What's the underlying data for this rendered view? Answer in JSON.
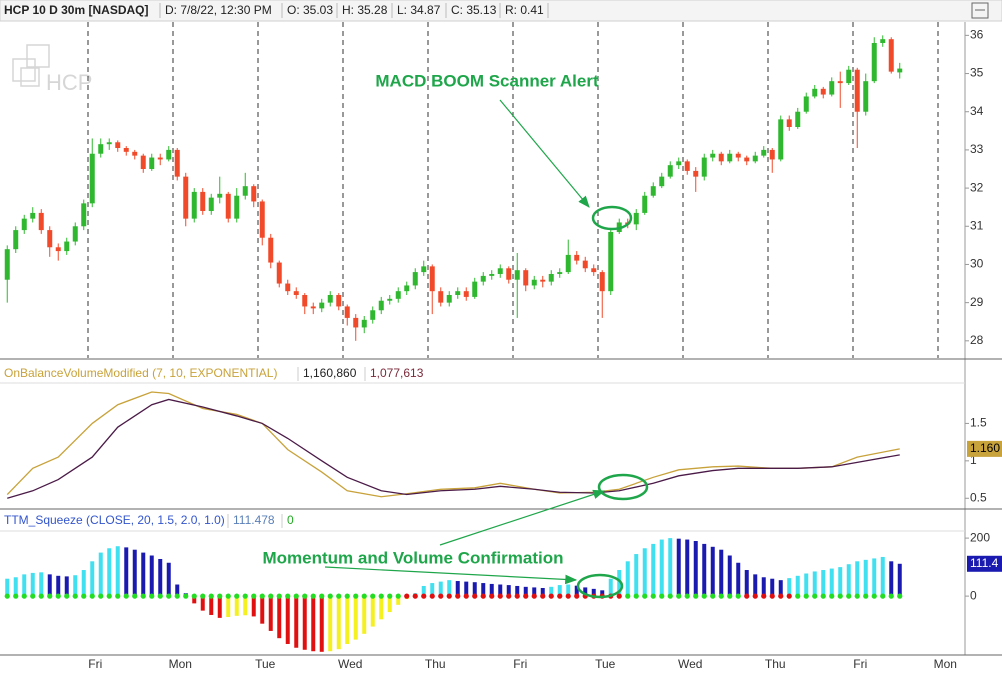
{
  "header": {
    "symbol": "HCP 10 D 30m [NASDAQ]",
    "date": "D: 7/8/22, 12:30 PM",
    "open": "O: 35.03",
    "high": "H: 35.28",
    "low": "L: 34.87",
    "close": "C: 35.13",
    "range": "R: 0.41"
  },
  "watermark": "HCP",
  "annotation": "Momentum and Volume Confirmation",
  "chart_data": [
    {
      "type": "candlestick",
      "annotation": "MACD BOOM Scanner Alert",
      "up_color": "#2fb82f",
      "down_color": "#f04a2a",
      "ylim": [
        27.55,
        36.35
      ],
      "yticks": [
        28,
        29,
        30,
        31,
        32,
        33,
        34,
        35,
        36
      ],
      "xticks": [
        {
          "value": 10,
          "label": "Fri"
        },
        {
          "value": 20,
          "label": "Mon"
        },
        {
          "value": 30,
          "label": "Tue"
        },
        {
          "value": 40,
          "label": "Wed"
        },
        {
          "value": 50,
          "label": "Thu"
        },
        {
          "value": 60,
          "label": "Fri"
        },
        {
          "value": 70,
          "label": "Tue"
        },
        {
          "value": 80,
          "label": "Wed"
        },
        {
          "value": 90,
          "label": "Thu"
        },
        {
          "value": 100,
          "label": "Fri"
        },
        {
          "value": 110,
          "label": "Mon"
        }
      ],
      "open": [
        29.6,
        30.4,
        30.9,
        31.2,
        31.35,
        30.9,
        30.45,
        30.35,
        30.6,
        31.0,
        31.6,
        32.9,
        33.15,
        33.2,
        33.05,
        32.95,
        32.85,
        32.5,
        32.8,
        32.75,
        33.0,
        32.3,
        31.2,
        31.9,
        31.4,
        31.75,
        31.85,
        31.2,
        31.8,
        32.05,
        31.65,
        30.7,
        30.05,
        29.5,
        29.3,
        29.2,
        28.9,
        28.85,
        29.0,
        29.2,
        28.9,
        28.6,
        28.35,
        28.55,
        28.8,
        29.05,
        29.1,
        29.3,
        29.45,
        29.8,
        29.95,
        29.3,
        29.0,
        29.2,
        29.3,
        29.15,
        29.55,
        29.7,
        29.75,
        29.9,
        29.6,
        29.85,
        29.45,
        29.6,
        29.55,
        29.75,
        29.8,
        30.25,
        30.1,
        29.9,
        29.8,
        29.3,
        30.85,
        31.1,
        31.05,
        31.35,
        31.8,
        32.05,
        32.3,
        32.6,
        32.7,
        32.45,
        32.3,
        32.8,
        32.9,
        32.7,
        32.9,
        32.8,
        32.7,
        32.85,
        33.0,
        32.75,
        33.8,
        33.6,
        34.0,
        34.4,
        34.6,
        34.45,
        34.8,
        34.75,
        35.1,
        34.0,
        34.8,
        35.8,
        35.9,
        35.03
      ],
      "high": [
        30.5,
        31.0,
        31.3,
        31.5,
        31.45,
        31.0,
        30.55,
        30.7,
        31.1,
        31.7,
        33.3,
        33.3,
        33.3,
        33.25,
        33.1,
        33.0,
        32.9,
        32.9,
        32.9,
        33.1,
        33.05,
        32.4,
        32.0,
        32.0,
        31.85,
        32.3,
        31.9,
        32.0,
        32.4,
        32.1,
        31.7,
        30.8,
        30.1,
        29.6,
        29.4,
        29.25,
        29.0,
        29.1,
        29.3,
        29.25,
        28.95,
        28.7,
        28.65,
        28.9,
        29.15,
        29.2,
        29.4,
        29.55,
        29.9,
        30.1,
        30.0,
        29.4,
        29.3,
        29.4,
        29.4,
        29.65,
        29.8,
        29.85,
        30.0,
        29.95,
        30.3,
        29.9,
        29.7,
        29.7,
        29.85,
        29.9,
        30.65,
        30.35,
        30.2,
        30.0,
        29.85,
        30.95,
        31.2,
        31.2,
        31.45,
        31.9,
        32.15,
        32.4,
        32.7,
        32.8,
        32.75,
        32.55,
        32.9,
        33.0,
        32.95,
        33.0,
        32.95,
        32.85,
        32.95,
        33.1,
        33.05,
        33.9,
        33.9,
        34.1,
        34.5,
        34.7,
        34.65,
        34.9,
        35.05,
        35.2,
        35.15,
        35.0,
        35.95,
        36.0,
        35.95,
        35.28
      ],
      "low": [
        29.0,
        30.3,
        30.8,
        31.1,
        30.8,
        30.2,
        30.1,
        30.25,
        30.5,
        30.9,
        31.5,
        32.8,
        33.0,
        32.95,
        32.85,
        32.75,
        32.4,
        32.45,
        32.6,
        32.7,
        32.2,
        31.0,
        31.1,
        31.3,
        31.3,
        31.6,
        31.1,
        31.1,
        31.7,
        31.5,
        30.5,
        29.9,
        29.4,
        29.2,
        29.1,
        28.7,
        28.7,
        28.75,
        28.9,
        28.8,
        28.4,
        28.0,
        28.2,
        28.45,
        28.7,
        28.95,
        29.0,
        29.2,
        29.35,
        29.7,
        28.7,
        28.9,
        28.9,
        29.1,
        29.05,
        29.1,
        29.45,
        29.6,
        29.65,
        29.5,
        28.6,
        29.3,
        29.35,
        29.4,
        29.45,
        29.65,
        29.75,
        30.0,
        29.8,
        29.7,
        28.6,
        29.2,
        30.8,
        30.95,
        30.9,
        31.3,
        31.75,
        32.0,
        32.25,
        32.5,
        32.35,
        31.9,
        32.2,
        32.7,
        32.6,
        32.65,
        32.7,
        32.6,
        32.65,
        32.8,
        32.4,
        32.7,
        33.5,
        33.55,
        33.95,
        34.35,
        34.35,
        34.4,
        34.1,
        34.7,
        33.05,
        33.9,
        34.75,
        35.7,
        35.0,
        34.87
      ],
      "close": [
        30.4,
        30.9,
        31.2,
        31.35,
        30.9,
        30.45,
        30.35,
        30.6,
        31.0,
        31.6,
        32.9,
        33.15,
        33.2,
        33.05,
        32.95,
        32.85,
        32.5,
        32.8,
        32.75,
        33.0,
        32.3,
        31.2,
        31.9,
        31.4,
        31.75,
        31.85,
        31.2,
        31.8,
        32.05,
        31.65,
        30.7,
        30.05,
        29.5,
        29.3,
        29.2,
        28.9,
        28.85,
        29.0,
        29.2,
        28.9,
        28.6,
        28.35,
        28.55,
        28.8,
        29.05,
        29.1,
        29.3,
        29.45,
        29.8,
        29.95,
        29.3,
        29.0,
        29.2,
        29.3,
        29.15,
        29.55,
        29.7,
        29.75,
        29.9,
        29.6,
        29.85,
        29.45,
        29.6,
        29.55,
        29.75,
        29.8,
        30.25,
        30.1,
        29.9,
        29.8,
        29.3,
        30.85,
        31.1,
        31.05,
        31.35,
        31.8,
        32.05,
        32.3,
        32.6,
        32.7,
        32.45,
        32.3,
        32.8,
        32.9,
        32.7,
        32.9,
        32.8,
        32.7,
        32.85,
        33.0,
        32.75,
        33.8,
        33.6,
        34.0,
        34.4,
        34.6,
        34.45,
        34.8,
        34.75,
        35.1,
        34.0,
        34.8,
        35.8,
        35.9,
        35.05,
        35.13
      ]
    },
    {
      "type": "line",
      "title": "OnBalanceVolumeModified (7, 10, EXPONENTIAL)",
      "readouts": [
        "1,160,860",
        "1,077,613"
      ],
      "badge": "1.160",
      "ylim": [
        0.37,
        2.0
      ],
      "yticks": [
        0.5,
        1,
        1.5
      ],
      "x": [
        0,
        3,
        6,
        10,
        13,
        17,
        19,
        23,
        27,
        30,
        33,
        37,
        40,
        44,
        47,
        51,
        55,
        58,
        62,
        65,
        69,
        72,
        76,
        79,
        83,
        86,
        90,
        93,
        97,
        100,
        105
      ],
      "series": [
        {
          "color": "#c8a23a",
          "values": [
            0.55,
            0.9,
            1.05,
            1.5,
            1.75,
            1.92,
            1.9,
            1.7,
            1.62,
            1.5,
            1.15,
            0.85,
            0.6,
            0.52,
            0.56,
            0.62,
            0.64,
            0.7,
            0.62,
            0.57,
            0.58,
            0.62,
            0.78,
            0.88,
            0.92,
            0.93,
            0.9,
            0.9,
            0.92,
            1.05,
            1.16
          ]
        },
        {
          "color": "#4b1b48",
          "values": [
            0.5,
            0.6,
            0.75,
            1.05,
            1.45,
            1.75,
            1.82,
            1.72,
            1.6,
            1.5,
            1.3,
            1.0,
            0.78,
            0.6,
            0.55,
            0.6,
            0.62,
            0.66,
            0.62,
            0.58,
            0.57,
            0.6,
            0.7,
            0.8,
            0.87,
            0.9,
            0.9,
            0.9,
            0.92,
            0.98,
            1.08
          ]
        }
      ]
    },
    {
      "type": "histogram",
      "title": "TTM_Squeeze (CLOSE, 20, 1.5, 2.0, 1.0)",
      "readouts": [
        "111.478",
        "0"
      ],
      "badge": "111.4",
      "ylim": [
        -203,
        290
      ],
      "yticks": [
        0,
        200
      ],
      "colors": {
        "up_positive": "#40e0f0",
        "down_positive": "#1a1ab0",
        "down_negative": "#e01010",
        "up_negative": "#f5f020",
        "dot_on": "#e01010",
        "dot_off": "#22dd22"
      },
      "squeeze_ranges": [
        [
          47,
          72
        ],
        [
          87,
          92
        ]
      ],
      "values": [
        60,
        65,
        75,
        80,
        82,
        75,
        70,
        68,
        72,
        90,
        120,
        150,
        165,
        172,
        168,
        160,
        150,
        140,
        128,
        115,
        40,
        10,
        -25,
        -50,
        -65,
        -75,
        -72,
        -68,
        -66,
        -70,
        -95,
        -120,
        -145,
        -165,
        -178,
        -185,
        -190,
        -192,
        -190,
        -183,
        -165,
        -150,
        -130,
        -105,
        -80,
        -55,
        -30,
        -10,
        10,
        35,
        45,
        50,
        55,
        52,
        50,
        48,
        45,
        42,
        40,
        38,
        35,
        32,
        30,
        28,
        32,
        38,
        40,
        36,
        30,
        25,
        20,
        60,
        90,
        120,
        145,
        165,
        180,
        195,
        200,
        198,
        195,
        190,
        180,
        170,
        160,
        140,
        115,
        90,
        75,
        65,
        60,
        55,
        62,
        70,
        78,
        85,
        90,
        95,
        100,
        110,
        120,
        125,
        130,
        135,
        120,
        111.478
      ]
    }
  ]
}
